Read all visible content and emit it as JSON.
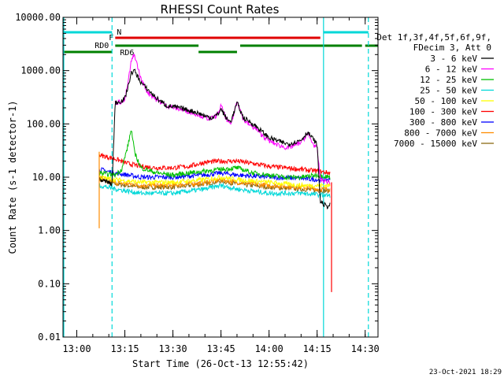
{
  "chart_data": {
    "type": "line",
    "title": "RHESSI Count Rates",
    "xlabel": "Start Time (26-Oct-13 12:55:42)",
    "ylabel": "Count Rate (s-1 detector-1)",
    "y_scale": "log",
    "ylim": [
      0.01,
      10000
    ],
    "xlim": [
      "12:55:42",
      "14:34:00"
    ],
    "x_ticks": [
      "13:00",
      "13:15",
      "13:30",
      "13:45",
      "14:00",
      "14:15",
      "14:30"
    ],
    "y_ticks": [
      "0.01",
      "0.10",
      "1.00",
      "10.00",
      "100.00",
      "1000.00",
      "10000.00"
    ],
    "legend": {
      "placement": "right",
      "header": [
        "Det 1f,3f,4f,5f,6f,9f,",
        "FDecim 3, Att 0"
      ],
      "entries": [
        "3 - 6 keV",
        "6 - 12 keV",
        "12 - 25 keV",
        "25 - 50 keV",
        "50 - 100 keV",
        "100 - 300 keV",
        "300 - 800 keV",
        "800 - 7000 keV",
        "7000 - 15000 keV"
      ]
    },
    "series": [
      {
        "name": "3 - 6 keV",
        "color": "#000000",
        "times": [
          "13:07",
          "13:10",
          "13:11",
          "13:12",
          "13:14",
          "13:15",
          "13:16",
          "13:17",
          "13:18",
          "13:20",
          "13:22",
          "13:25",
          "13:28",
          "13:32",
          "13:35",
          "13:38",
          "13:40",
          "13:42",
          "13:44",
          "13:45",
          "13:47",
          "13:48",
          "13:49",
          "13:50",
          "13:52",
          "13:54",
          "13:56",
          "13:58",
          "14:00",
          "14:02",
          "14:04",
          "14:06",
          "14:08",
          "14:10",
          "14:12",
          "14:14",
          "14:15",
          "14:16",
          "14:18",
          "14:19"
        ],
        "values": [
          9,
          8,
          7,
          250,
          270,
          300,
          500,
          900,
          1000,
          600,
          450,
          300,
          220,
          200,
          180,
          160,
          140,
          130,
          150,
          190,
          120,
          110,
          160,
          250,
          130,
          110,
          90,
          70,
          55,
          50,
          45,
          42,
          45,
          50,
          70,
          50,
          40,
          3.5,
          2.8,
          3
        ]
      },
      {
        "name": "6 - 12 keV",
        "color": "#ff00ff",
        "times": [
          "13:12",
          "13:14",
          "13:15",
          "13:16",
          "13:17",
          "13:18",
          "13:20",
          "13:22",
          "13:25",
          "13:28",
          "13:32",
          "13:35",
          "13:38",
          "13:40",
          "13:42",
          "13:44",
          "13:45",
          "13:47",
          "13:48",
          "13:49",
          "13:50",
          "13:52",
          "13:54",
          "13:56",
          "13:58",
          "14:00",
          "14:02",
          "14:04",
          "14:06",
          "14:08",
          "14:10",
          "14:12",
          "14:14",
          "14:15",
          "14:16",
          "14:19"
        ],
        "values": [
          250,
          260,
          280,
          600,
          1500,
          2000,
          700,
          400,
          280,
          220,
          190,
          170,
          150,
          130,
          125,
          150,
          220,
          110,
          100,
          150,
          280,
          120,
          95,
          80,
          60,
          48,
          42,
          38,
          35,
          40,
          45,
          65,
          40,
          35,
          9,
          8
        ]
      },
      {
        "name": "12 - 25 keV",
        "color": "#00c000",
        "times": [
          "13:07",
          "13:12",
          "13:14",
          "13:16",
          "13:17",
          "13:18",
          "13:20",
          "13:25",
          "13:30",
          "13:35",
          "13:40",
          "13:45",
          "13:50",
          "13:55",
          "14:00",
          "14:05",
          "14:10",
          "14:15",
          "14:19"
        ],
        "values": [
          12,
          11,
          14,
          40,
          80,
          30,
          15,
          12,
          11,
          12,
          13,
          14,
          15,
          12,
          11,
          10,
          10,
          11,
          10
        ]
      },
      {
        "name": "25 - 50 keV",
        "color": "#00d8d8",
        "times": [
          "13:07",
          "13:12",
          "13:20",
          "13:30",
          "13:40",
          "13:45",
          "13:50",
          "14:00",
          "14:10",
          "14:19"
        ],
        "values": [
          7,
          6,
          5,
          5,
          6,
          7,
          6,
          5,
          5,
          4.5
        ]
      },
      {
        "name": "50 - 100 keV",
        "color": "#ffff00",
        "times": [
          "13:07",
          "13:12",
          "13:20",
          "13:30",
          "13:40",
          "13:45",
          "13:50",
          "14:00",
          "14:10",
          "14:19"
        ],
        "values": [
          10,
          9,
          8,
          8,
          9,
          10,
          9,
          8,
          7,
          7
        ]
      },
      {
        "name": "100 - 300 keV",
        "color": "#ff0000",
        "times": [
          "13:07",
          "13:12",
          "13:16",
          "13:20",
          "13:25",
          "13:30",
          "13:35",
          "13:40",
          "13:45",
          "13:50",
          "13:55",
          "14:00",
          "14:05",
          "14:10",
          "14:15",
          "14:19"
        ],
        "values": [
          26,
          22,
          18,
          16,
          15,
          15,
          16,
          19,
          20,
          20,
          18,
          16,
          15,
          14,
          13,
          12
        ]
      },
      {
        "name": "300 - 800 keV",
        "color": "#0000ff",
        "times": [
          "13:07",
          "13:12",
          "13:20",
          "13:30",
          "13:40",
          "13:45",
          "13:50",
          "14:00",
          "14:10",
          "14:15",
          "14:19"
        ],
        "values": [
          14,
          12,
          10,
          10,
          11,
          12,
          11,
          10,
          9.5,
          9,
          9
        ]
      },
      {
        "name": "800 - 7000 keV",
        "color": "#ff8c00",
        "times": [
          "13:07",
          "13:12",
          "13:20",
          "13:30",
          "13:40",
          "13:45",
          "13:50",
          "14:00",
          "14:10",
          "14:15",
          "14:19"
        ],
        "values": [
          10,
          8,
          7,
          7,
          8,
          9,
          8,
          7,
          6.5,
          6,
          6
        ]
      },
      {
        "name": "7000 - 15000 keV",
        "color": "#8b6914",
        "times": [
          "13:07",
          "13:12",
          "13:20",
          "13:30",
          "13:40",
          "13:45",
          "13:50",
          "14:00",
          "14:10",
          "14:19"
        ],
        "values": [
          9,
          7.5,
          6.5,
          6.5,
          7.5,
          8.5,
          7.5,
          6.5,
          6,
          5.5
        ]
      }
    ],
    "vertical_lines": [
      {
        "time": "12:55:42",
        "color": "#00d8d8",
        "style": "solid"
      },
      {
        "time": "13:11",
        "color": "#00d8d8",
        "style": "dashed"
      },
      {
        "time": "14:17",
        "color": "#00d8d8",
        "style": "solid"
      },
      {
        "time": "14:31",
        "color": "#00d8d8",
        "style": "dashed"
      }
    ],
    "spike_lines": [
      {
        "time": "13:07",
        "from": 1.1,
        "to": 30,
        "color": "#ff8c00"
      },
      {
        "time": "14:19:30",
        "from": 0.07,
        "to": 8,
        "color": "#ff0000"
      }
    ],
    "flag_bars": [
      {
        "label": "N",
        "color": "#00d8d8",
        "segments": [
          [
            "12:55:42",
            "13:11"
          ],
          [
            "14:17",
            "14:31"
          ]
        ],
        "level": 1
      },
      {
        "label": "F",
        "color": "#e00000",
        "segments": [
          [
            "13:12",
            "14:16"
          ]
        ],
        "level": 2
      },
      {
        "label": "RD0",
        "color": "#008000",
        "segments": [
          [
            "12:55:42",
            "13:11"
          ]
        ],
        "level": 3
      },
      {
        "label": "RD6",
        "color": "#008000",
        "segments": [
          [
            "13:12",
            "13:38"
          ],
          [
            "13:38",
            "13:50"
          ],
          [
            "13:51",
            "14:29"
          ],
          [
            "14:30",
            "14:34"
          ]
        ],
        "level": 4
      }
    ]
  },
  "timestamp": "23-Oct-2021 18:29"
}
